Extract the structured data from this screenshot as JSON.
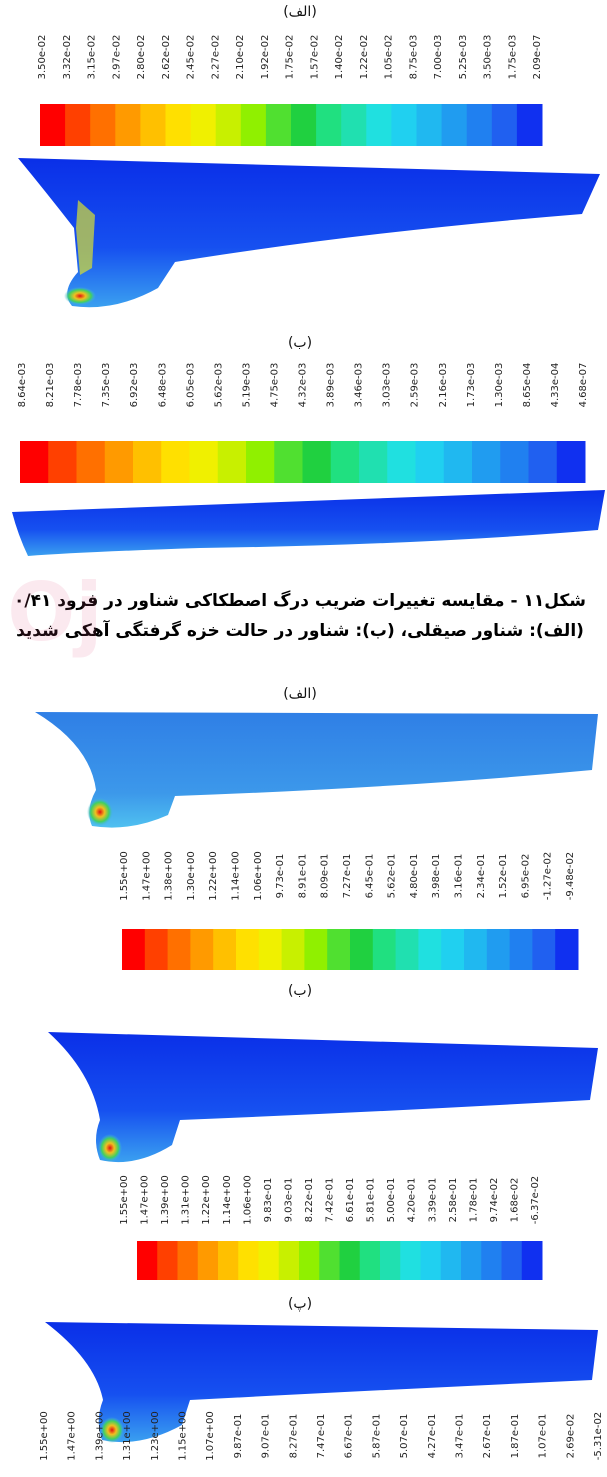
{
  "figure_top": {
    "panels": [
      {
        "label": "(الف)",
        "ticks": [
          "3.50e-02",
          "3.32e-02",
          "3.15e-02",
          "2.97e-02",
          "2.80e-02",
          "2.62e-02",
          "2.45e-02",
          "2.27e-02",
          "2.10e-02",
          "1.92e-02",
          "1.75e-02",
          "1.57e-02",
          "1.40e-02",
          "1.22e-02",
          "1.05e-02",
          "8.75e-03",
          "7.00e-03",
          "5.25e-03",
          "3.50e-03",
          "1.75e-03",
          "2.09e-07"
        ]
      },
      {
        "label": "(ب)",
        "ticks": [
          "8.64e-03",
          "8.21e-03",
          "7.78e-03",
          "7.35e-03",
          "6.92e-03",
          "6.48e-03",
          "6.05e-03",
          "5.62e-03",
          "5.19e-03",
          "4.75e-03",
          "4.32e-03",
          "3.89e-03",
          "3.46e-03",
          "3.03e-03",
          "2.59e-03",
          "2.16e-03",
          "1.73e-03",
          "1.30e-03",
          "8.65e-04",
          "4.33e-04",
          "4.68e-07"
        ]
      }
    ]
  },
  "caption": {
    "lines": [
      "شکل۱۱ - مقایسه تغییرات ضریب درگ اصطکاکی شناور در فرود ۰/۴۱",
      "(الف): شناور صیقلی، (ب): شناور در حالت خزه گرفتگی آهکی شدید"
    ]
  },
  "figure_bottom": {
    "panels": [
      {
        "label": "(الف)",
        "ticks": [
          "1.55e+00",
          "1.47e+00",
          "1.38e+00",
          "1.30e+00",
          "1.22e+00",
          "1.14e+00",
          "1.06e+00",
          "9.73e-01",
          "8.91e-01",
          "8.09e-01",
          "7.27e-01",
          "6.45e-01",
          "5.62e-01",
          "4.80e-01",
          "3.98e-01",
          "3.16e-01",
          "2.34e-01",
          "1.52e-01",
          "6.95e-02",
          "-1.27e-02",
          "-9.48e-02"
        ]
      },
      {
        "label": "(ب)",
        "ticks": [
          "1.55e+00",
          "1.47e+00",
          "1.39e+00",
          "1.31e+00",
          "1.22e+00",
          "1.14e+00",
          "1.06e+00",
          "9.83e-01",
          "9.03e-01",
          "8.22e-01",
          "7.42e-01",
          "6.61e-01",
          "5.81e-01",
          "5.00e-01",
          "4.20e-01",
          "3.39e-01",
          "2.58e-01",
          "1.78e-01",
          "9.74e-02",
          "1.68e-02",
          "-6.37e-02"
        ]
      },
      {
        "label": "(پ)",
        "ticks": [
          "1.55e+00",
          "1.47e+00",
          "1.39e+00",
          "1.31e+00",
          "1.23e+00",
          "1.15e+00",
          "1.07e+00",
          "9.87e-01",
          "9.07e-01",
          "8.27e-01",
          "7.47e-01",
          "6.67e-01",
          "5.87e-01",
          "5.07e-01",
          "4.27e-01",
          "3.47e-01",
          "2.67e-01",
          "1.87e-01",
          "1.07e-01",
          "2.69e-02",
          "-5.31e-02"
        ]
      }
    ]
  }
}
